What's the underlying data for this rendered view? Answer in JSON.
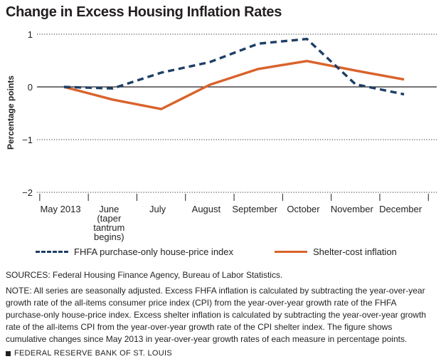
{
  "chart_data": {
    "type": "line",
    "title": "Change in Excess Housing Inflation Rates",
    "ylabel": "Percentage points",
    "xlabel": "",
    "ylim": [
      -2,
      1
    ],
    "yticks": [
      1,
      0,
      -1,
      -2
    ],
    "ytick_labels": [
      "1",
      "0",
      "−1",
      "−2"
    ],
    "grid": "dotted horizontal",
    "legend_position": "bottom",
    "categories": [
      [
        "May 2013"
      ],
      [
        "June",
        "(taper",
        "tantrum",
        "begins)"
      ],
      [
        "July"
      ],
      [
        "August"
      ],
      [
        "September"
      ],
      [
        "October"
      ],
      [
        "November"
      ],
      [
        "December"
      ]
    ],
    "series": [
      {
        "name": "FHFA purchase-only house-price index",
        "style": "dashed",
        "color": "#1d3f66",
        "values": [
          0.0,
          -0.03,
          0.27,
          0.47,
          0.82,
          0.91,
          0.05,
          -0.14
        ]
      },
      {
        "name": "Shelter-cost inflation",
        "style": "solid",
        "color": "#d9632c",
        "values": [
          0.0,
          -0.24,
          -0.42,
          0.04,
          0.34,
          0.49,
          0.31,
          0.14
        ]
      }
    ]
  },
  "sources": "SOURCES: Federal Housing Finance Agency, Bureau of Labor Statistics.",
  "note": "NOTE: All series are seasonally adjusted. Excess FHFA inflation is calculated by subtracting the year-over-year growth rate of the all-items consumer price index (CPI) from the year-over-year growth rate of the FHFA purchase-only house-price index. Excess shelter inflation is calculated by subtracting the year-over-year growth rate of the all-items CPI from the year-over-year growth rate of the CPI shelter index. The figure shows cumulative changes since May 2013 in year-over-year growth rates of each measure in percentage points.",
  "footer": "FEDERAL RESERVE BANK OF ST. LOUIS"
}
